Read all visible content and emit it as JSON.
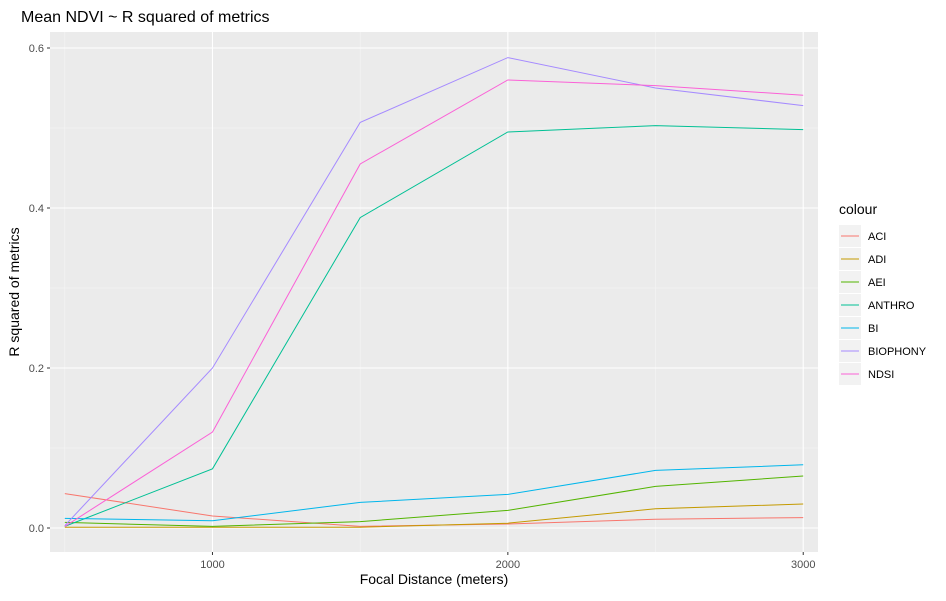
{
  "chart_data": {
    "type": "line",
    "title": "Mean NDVI ~ R squared of metrics",
    "xlabel": "Focal Distance (meters)",
    "ylabel": "R squared of metrics",
    "xlim": [
      450,
      3050
    ],
    "ylim": [
      -0.03,
      0.62
    ],
    "x_ticks": [
      1000,
      2000,
      3000
    ],
    "x_minor_ticks": [
      500,
      1500,
      2500
    ],
    "y_ticks": [
      0.0,
      0.2,
      0.4,
      0.6
    ],
    "y_minor_ticks": [
      0.1,
      0.3,
      0.5
    ],
    "x_tick_labels": [
      "1000",
      "2000",
      "3000"
    ],
    "y_tick_labels": [
      "0.0",
      "0.2",
      "0.4",
      "0.6"
    ],
    "legend_title": "colour",
    "legend_position": "right",
    "grid": true,
    "panel_background": "#ebebeb",
    "x": [
      500,
      1000,
      1500,
      2000,
      2500,
      3000
    ],
    "series": [
      {
        "name": "ACI",
        "color": "#F8766D",
        "values": [
          0.043,
          0.015,
          0.002,
          0.005,
          0.011,
          0.013
        ]
      },
      {
        "name": "ADI",
        "color": "#C49A00",
        "values": [
          0.001,
          0.001,
          0.001,
          0.006,
          0.024,
          0.03
        ]
      },
      {
        "name": "AEI",
        "color": "#53B400",
        "values": [
          0.007,
          0.002,
          0.008,
          0.022,
          0.052,
          0.065
        ]
      },
      {
        "name": "ANTHRO",
        "color": "#00C094",
        "values": [
          0.002,
          0.074,
          0.388,
          0.495,
          0.503,
          0.498
        ]
      },
      {
        "name": "BI",
        "color": "#00B6EB",
        "values": [
          0.012,
          0.009,
          0.032,
          0.042,
          0.072,
          0.079
        ]
      },
      {
        "name": "BIOPHONY",
        "color": "#A58AFF",
        "values": [
          0.003,
          0.2,
          0.507,
          0.588,
          0.55,
          0.528
        ]
      },
      {
        "name": "NDSI",
        "color": "#FB61D7",
        "values": [
          0.002,
          0.12,
          0.455,
          0.56,
          0.553,
          0.541
        ]
      }
    ]
  }
}
